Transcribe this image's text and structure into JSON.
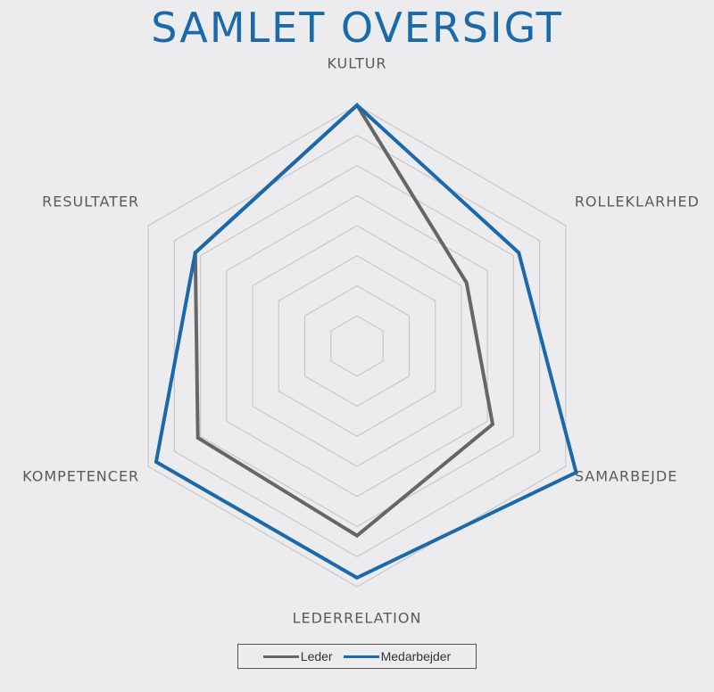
{
  "chart_data": {
    "type": "radar",
    "title": "SAMLET OVERSIGT",
    "axes": [
      "KULTUR",
      "ROLLEKLARHED",
      "SAMARBEJDE",
      "LEDERRELATION",
      "KOMPETENCER",
      "RESULTATER"
    ],
    "rings": 8,
    "max": 8,
    "grid": true,
    "legend_position": "bottom",
    "series": [
      {
        "name": "Leder",
        "color": "#666666",
        "values": [
          8,
          4.2,
          5.2,
          6.3,
          6.1,
          6.2
        ]
      },
      {
        "name": "Medarbejder",
        "color": "#1a6aab",
        "values": [
          8,
          6.2,
          8.4,
          7.7,
          7.7,
          6.2
        ]
      }
    ]
  },
  "legend": {
    "items": [
      "Leder",
      "Medarbejder"
    ]
  }
}
